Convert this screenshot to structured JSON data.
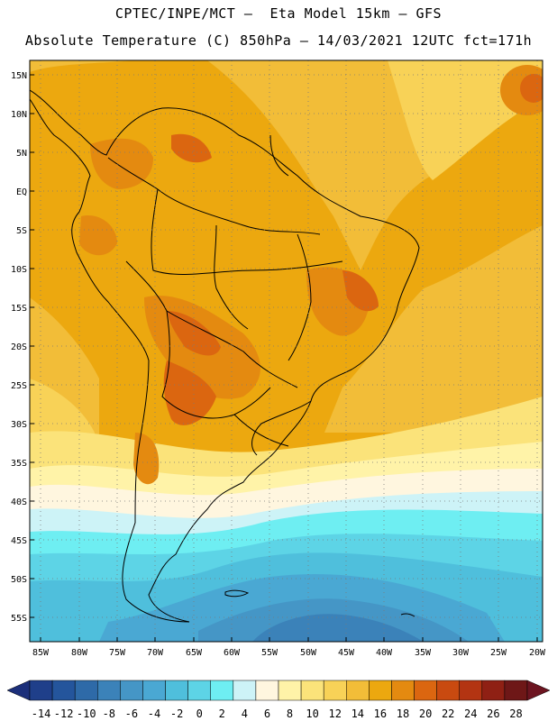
{
  "header": {
    "line1": "CPTEC/INPE/MCT –  Eta Model 15km – GFS",
    "line2": "Absolute Temperature (C) 850hPa – 14/03/2021 12UTC fct=171h"
  },
  "map": {
    "lat_labels": [
      "15N",
      "10N",
      "5N",
      "EQ",
      "5S",
      "10S",
      "15S",
      "20S",
      "25S",
      "30S",
      "35S",
      "40S",
      "45S",
      "50S",
      "55S"
    ],
    "lon_labels": [
      "85W",
      "80W",
      "75W",
      "70W",
      "65W",
      "60W",
      "55W",
      "50W",
      "45W",
      "40W",
      "35W",
      "30W",
      "25W",
      "20W"
    ]
  },
  "colorbar": {
    "labels": [
      "-14",
      "-12",
      "-10",
      "-8",
      "-6",
      "-4",
      "-2",
      "0",
      "2",
      "4",
      "6",
      "8",
      "10",
      "12",
      "14",
      "16",
      "18",
      "20",
      "22",
      "24",
      "26",
      "28"
    ],
    "colors": [
      "#1f3f8a",
      "#24559c",
      "#2e6aa8",
      "#3b82b9",
      "#4596c6",
      "#4aa8d3",
      "#4fbfdc",
      "#5dd4e6",
      "#6eeef2",
      "#cdf3f7",
      "#fff6df",
      "#fff3a8",
      "#fbe37a",
      "#f8d257",
      "#f2bd38",
      "#eca80f",
      "#e48a10",
      "#db6610",
      "#c94a10",
      "#b33412",
      "#8f2014",
      "#6e1717"
    ],
    "under_color": "#1c2f7a",
    "over_color": "#6c1420"
  }
}
